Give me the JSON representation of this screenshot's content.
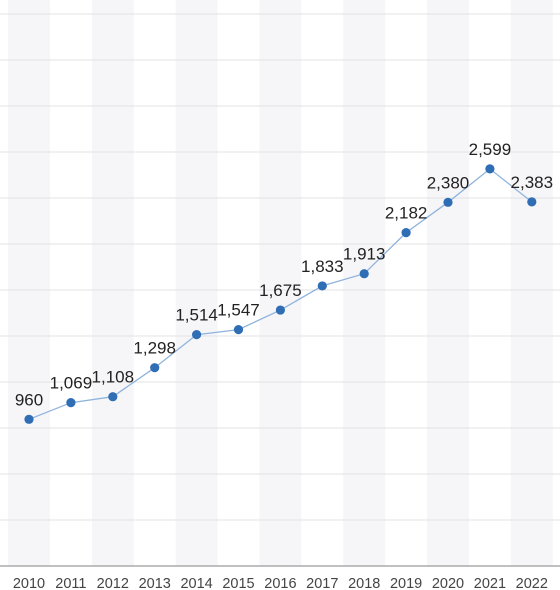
{
  "chart_data": {
    "type": "line",
    "title": "",
    "xlabel": "",
    "ylabel": "",
    "categories": [
      "2010",
      "2011",
      "2012",
      "2013",
      "2014",
      "2015",
      "2016",
      "2017",
      "2018",
      "2019",
      "2020",
      "2021",
      "2022"
    ],
    "series": [
      {
        "values": [
          960,
          1069,
          1108,
          1298,
          1514,
          1547,
          1675,
          1833,
          1913,
          2182,
          2380,
          2599,
          2383
        ],
        "labels": [
          "960",
          "1,069",
          "1,108",
          "1,298",
          "1,514",
          "1,547",
          "1,675",
          "1,833",
          "1,913",
          "2,182",
          "2,380",
          "2,599",
          "2,383"
        ]
      }
    ],
    "ylim": [
      0,
      3000
    ],
    "grid": true,
    "legend": "none",
    "colors": {
      "line": "#8fb3dc",
      "point": "#2f6db5",
      "grid": "#e3e3e3",
      "band": "#f6f6f8"
    }
  }
}
